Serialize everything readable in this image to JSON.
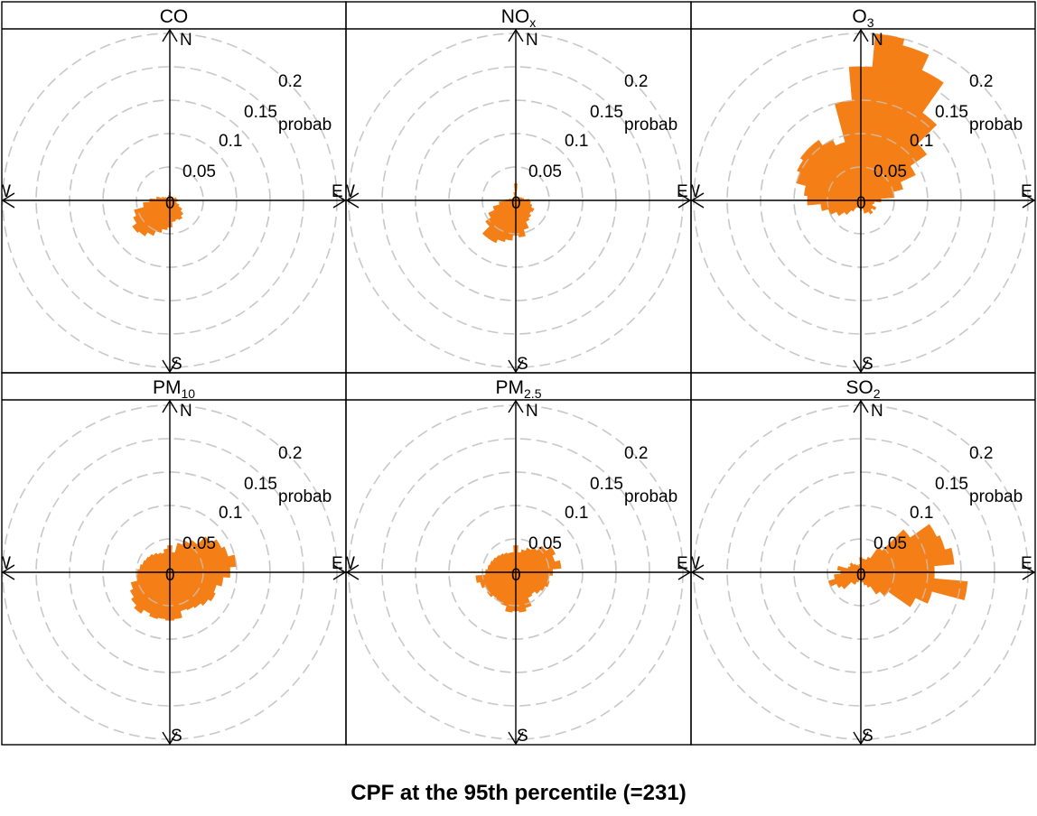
{
  "figure_title": "CPF at the 95th percentile (=231)",
  "colors": {
    "bar": "#f57f17",
    "ring": "#c8c8c8",
    "axis": "#000000"
  },
  "compass": {
    "n": "N",
    "e": "E",
    "s": "S",
    "w": "W"
  },
  "radial_labels": [
    "0",
    "0.05",
    "0.1",
    "0.15",
    "0.2"
  ],
  "radial_axis_label": "probab",
  "chart_data": [
    {
      "type": "polar-bar",
      "panel": "CO",
      "title_main": "CO",
      "title_sub": "",
      "rmax": 0.25,
      "rings": [
        0.05,
        0.1,
        0.15,
        0.2,
        0.25
      ],
      "ring_labels": [
        0,
        0.05,
        0.1,
        0.15,
        0.2
      ],
      "bins_deg": 10,
      "direction_start": 0,
      "values": [
        0.012,
        0.005,
        0.004,
        0.004,
        0.005,
        0.006,
        0.006,
        0.01,
        0.01,
        0.012,
        0.01,
        0.01,
        0.015,
        0.022,
        0.028,
        0.032,
        0.03,
        0.032,
        0.04,
        0.044,
        0.05,
        0.058,
        0.065,
        0.068,
        0.06,
        0.055,
        0.04,
        0.03,
        0.02,
        0.012,
        0.008,
        0.005,
        0.004,
        0.003,
        0.004,
        0.008
      ]
    },
    {
      "type": "polar-bar",
      "panel": "NOx",
      "title_main": "NO",
      "title_sub": "x",
      "rmax": 0.25,
      "rings": [
        0.05,
        0.1,
        0.15,
        0.2,
        0.25
      ],
      "ring_labels": [
        0,
        0.05,
        0.1,
        0.15,
        0.2
      ],
      "bins_deg": 10,
      "direction_start": 0,
      "values": [
        0.025,
        0.004,
        0.004,
        0.004,
        0.005,
        0.006,
        0.008,
        0.01,
        0.012,
        0.02,
        0.022,
        0.025,
        0.03,
        0.028,
        0.032,
        0.035,
        0.045,
        0.055,
        0.052,
        0.06,
        0.064,
        0.07,
        0.07,
        0.055,
        0.045,
        0.035,
        0.025,
        0.015,
        0.01,
        0.006,
        0.005,
        0.004,
        0.003,
        0.003,
        0.004,
        0.012
      ]
    },
    {
      "type": "polar-bar",
      "panel": "O3",
      "title_main": "O",
      "title_sub": "3",
      "rmax": 0.25,
      "rings": [
        0.05,
        0.1,
        0.15,
        0.2,
        0.25
      ],
      "ring_labels": [
        0,
        0.05,
        0.1,
        0.15,
        0.2
      ],
      "bins_deg": 10,
      "direction_start": 0,
      "values": [
        0.2,
        0.25,
        0.24,
        0.215,
        0.16,
        0.12,
        0.09,
        0.065,
        0.05,
        0.03,
        0.02,
        0.018,
        0.025,
        0.02,
        0.025,
        0.02,
        0.02,
        0.01,
        0.015,
        0.01,
        0.01,
        0.012,
        0.02,
        0.03,
        0.04,
        0.05,
        0.06,
        0.08,
        0.085,
        0.1,
        0.105,
        0.11,
        0.11,
        0.1,
        0.09,
        0.15
      ]
    },
    {
      "type": "polar-bar",
      "panel": "PM10",
      "title_main": "PM",
      "title_sub": "10",
      "rmax": 0.25,
      "rings": [
        0.05,
        0.1,
        0.15,
        0.2,
        0.25
      ],
      "ring_labels": [
        0,
        0.05,
        0.1,
        0.15,
        0.2
      ],
      "bins_deg": 10,
      "direction_start": 0,
      "values": [
        0.04,
        0.03,
        0.045,
        0.052,
        0.058,
        0.075,
        0.085,
        0.09,
        0.1,
        0.09,
        0.08,
        0.072,
        0.075,
        0.07,
        0.065,
        0.062,
        0.06,
        0.07,
        0.072,
        0.07,
        0.072,
        0.068,
        0.075,
        0.07,
        0.065,
        0.06,
        0.05,
        0.048,
        0.045,
        0.042,
        0.04,
        0.038,
        0.035,
        0.032,
        0.03,
        0.035
      ]
    },
    {
      "type": "polar-bar",
      "panel": "PM2.5",
      "title_main": "PM",
      "title_sub": "2.5",
      "rmax": 0.25,
      "rings": [
        0.05,
        0.1,
        0.15,
        0.2,
        0.25
      ],
      "ring_labels": [
        0,
        0.05,
        0.1,
        0.15,
        0.2
      ],
      "bins_deg": 10,
      "direction_start": 0,
      "values": [
        0.04,
        0.03,
        0.035,
        0.04,
        0.045,
        0.055,
        0.065,
        0.06,
        0.068,
        0.055,
        0.05,
        0.052,
        0.048,
        0.045,
        0.04,
        0.042,
        0.055,
        0.06,
        0.058,
        0.06,
        0.052,
        0.05,
        0.048,
        0.052,
        0.05,
        0.055,
        0.06,
        0.045,
        0.042,
        0.04,
        0.038,
        0.036,
        0.034,
        0.032,
        0.03,
        0.03
      ]
    },
    {
      "type": "polar-bar",
      "panel": "SO2",
      "title_main": "SO",
      "title_sub": "2",
      "rmax": 0.25,
      "rings": [
        0.05,
        0.1,
        0.15,
        0.2,
        0.25
      ],
      "ring_labels": [
        0,
        0.05,
        0.1,
        0.15,
        0.2
      ],
      "bins_deg": 10,
      "direction_start": 0,
      "values": [
        0.022,
        0.02,
        0.02,
        0.025,
        0.045,
        0.09,
        0.125,
        0.13,
        0.14,
        0.11,
        0.16,
        0.11,
        0.09,
        0.05,
        0.04,
        0.025,
        0.02,
        0.015,
        0.012,
        0.01,
        0.015,
        0.02,
        0.02,
        0.035,
        0.04,
        0.05,
        0.04,
        0.03,
        0.035,
        0.02,
        0.018,
        0.02,
        0.015,
        0.012,
        0.01,
        0.012
      ]
    }
  ]
}
